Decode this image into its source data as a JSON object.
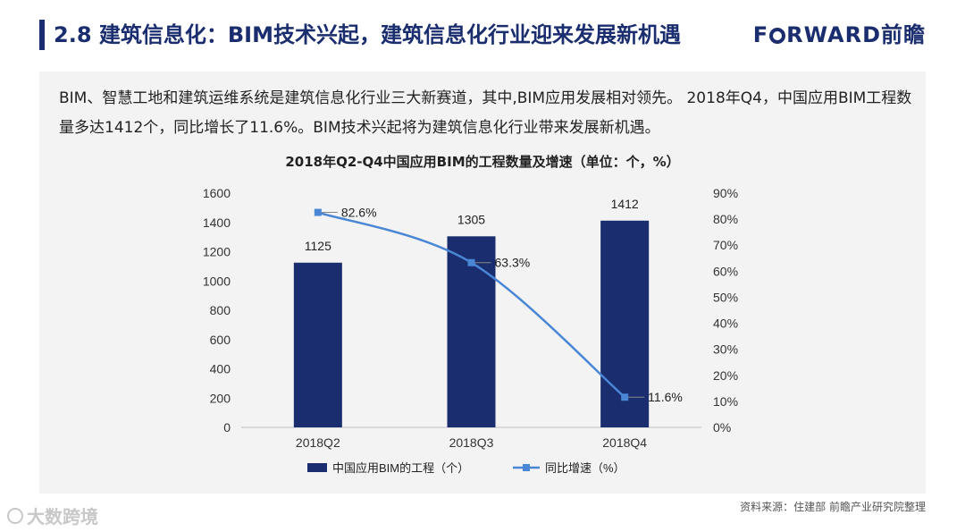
{
  "header": {
    "title": "2.8 建筑信息化：BIM技术兴起，建筑信息化行业迎来发展新机遇",
    "logo_pre": "F",
    "logo_post": "RWARD前瞻"
  },
  "description": "BIM、智慧工地和建筑运维系统是建筑信息化行业三大新赛道，其中,BIM应用发展相对领先。 2018年Q4，中国应用BIM工程数量多达1412个，同比增长了11.6%。BIM技术兴起将为建筑信息化行业带来发展新机遇。",
  "chart_data": {
    "type": "bar",
    "title": "2018年Q2-Q4中国应用BIM的工程数量及增速（单位：个，%）",
    "categories": [
      "2018Q2",
      "2018Q3",
      "2018Q4"
    ],
    "series": [
      {
        "name": "中国应用BIM的工程（个）",
        "type": "bar",
        "axis": "left",
        "values": [
          1125,
          1305,
          1412
        ],
        "labels": [
          "1125",
          "1305",
          "1412"
        ]
      },
      {
        "name": "同比增速（%）",
        "type": "line",
        "axis": "right",
        "values": [
          82.6,
          63.3,
          11.6
        ],
        "labels": [
          "82.6%",
          "63.3%",
          "11.6%"
        ]
      }
    ],
    "y_left": {
      "min": 0,
      "max": 1600,
      "ticks": [
        "0",
        "200",
        "400",
        "600",
        "800",
        "1000",
        "1200",
        "1400",
        "1600"
      ]
    },
    "y_right": {
      "min": 0,
      "max": 90,
      "ticks": [
        "0%",
        "10%",
        "20%",
        "30%",
        "40%",
        "50%",
        "60%",
        "70%",
        "80%",
        "90%"
      ]
    },
    "legend_position": "bottom",
    "grid": false
  },
  "colors": {
    "bar": "#1a2d6e",
    "line": "#4a86d6",
    "axis_text": "#333333"
  },
  "footer": {
    "source": "资料来源：住建部 前瞻产业研究院整理",
    "watermark": "大数跨境"
  }
}
